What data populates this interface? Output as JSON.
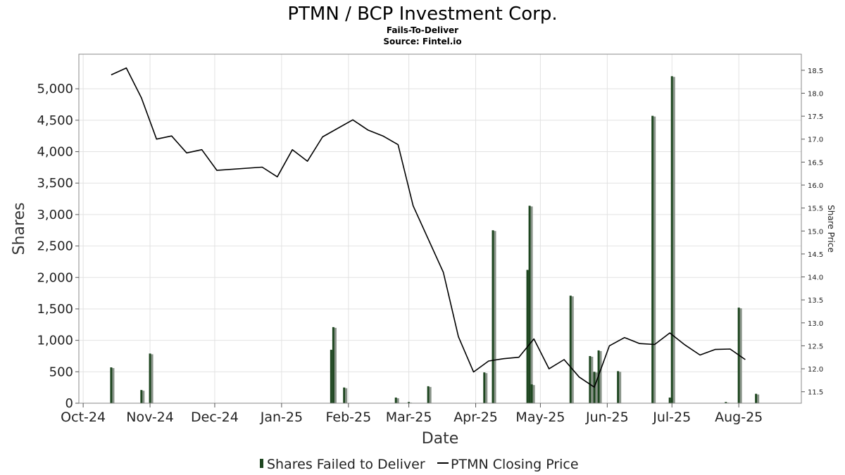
{
  "chart_data": {
    "type": "bar",
    "title": "PTMN / BCP Investment Corp.",
    "subtitle": "Fails-To-Deliver",
    "source": "Source: Fintel.io",
    "xlabel": "Date",
    "ylabel": "Shares",
    "y2label": "Share Price",
    "ylim": [
      0,
      5550
    ],
    "y2lim": [
      11.25,
      18.85
    ],
    "yticks": [
      0,
      500,
      1000,
      1500,
      2000,
      2500,
      3000,
      3500,
      4000,
      4500,
      5000
    ],
    "ytick_labels": [
      "0",
      "500",
      "1,000",
      "1,500",
      "2,000",
      "2,500",
      "3,000",
      "3,500",
      "4,000",
      "4,500",
      "5,000"
    ],
    "y2ticks": [
      11.5,
      12.0,
      12.5,
      13.0,
      13.5,
      14.0,
      14.5,
      15.0,
      15.5,
      16.0,
      16.5,
      17.0,
      17.5,
      18.0,
      18.5
    ],
    "y2tick_labels": [
      "11.5",
      "12.0",
      "12.5",
      "13.0",
      "13.5",
      "14.0",
      "14.5",
      "15.0",
      "15.5",
      "16.0",
      "16.5",
      "17.0",
      "17.5",
      "18.0",
      "18.5"
    ],
    "xlim": [
      "2024-09-29",
      "2025-08-30"
    ],
    "xticks": [
      "2024-10-01",
      "2024-11-01",
      "2024-12-01",
      "2025-01-01",
      "2025-02-01",
      "2025-03-01",
      "2025-04-01",
      "2025-05-01",
      "2025-06-01",
      "2025-07-01",
      "2025-08-01"
    ],
    "xtick_labels": [
      "Oct-24",
      "Nov-24",
      "Dec-24",
      "Jan-25",
      "Feb-25",
      "Mar-25",
      "Apr-25",
      "May-25",
      "Jun-25",
      "Jul-25",
      "Aug-25"
    ],
    "grid": true,
    "legend_position": "bottom-center",
    "series": [
      {
        "name": "Shares Failed to Deliver",
        "kind": "bar",
        "color": "#1e4620",
        "points": [
          {
            "x": "2024-10-14",
            "y": 570
          },
          {
            "x": "2024-10-28",
            "y": 210
          },
          {
            "x": "2024-11-01",
            "y": 790
          },
          {
            "x": "2025-01-24",
            "y": 850
          },
          {
            "x": "2025-01-25",
            "y": 1210
          },
          {
            "x": "2025-01-30",
            "y": 250
          },
          {
            "x": "2025-02-23",
            "y": 90
          },
          {
            "x": "2025-03-01",
            "y": 20
          },
          {
            "x": "2025-03-10",
            "y": 270
          },
          {
            "x": "2025-04-05",
            "y": 490
          },
          {
            "x": "2025-04-09",
            "y": 2750
          },
          {
            "x": "2025-04-25",
            "y": 2120
          },
          {
            "x": "2025-04-26",
            "y": 3140
          },
          {
            "x": "2025-04-27",
            "y": 300
          },
          {
            "x": "2025-05-15",
            "y": 1710
          },
          {
            "x": "2025-05-24",
            "y": 750
          },
          {
            "x": "2025-05-26",
            "y": 500
          },
          {
            "x": "2025-05-28",
            "y": 840
          },
          {
            "x": "2025-06-06",
            "y": 510
          },
          {
            "x": "2025-06-22",
            "y": 4570
          },
          {
            "x": "2025-06-30",
            "y": 90
          },
          {
            "x": "2025-07-01",
            "y": 5200
          },
          {
            "x": "2025-07-26",
            "y": 20
          },
          {
            "x": "2025-08-01",
            "y": 1520
          },
          {
            "x": "2025-08-09",
            "y": 150
          }
        ]
      },
      {
        "name": "PTMN Closing Price",
        "kind": "line",
        "color": "#000000",
        "points": [
          {
            "x": "2024-10-14",
            "y": 18.4
          },
          {
            "x": "2024-10-21",
            "y": 18.55
          },
          {
            "x": "2024-10-28",
            "y": 17.9
          },
          {
            "x": "2024-11-04",
            "y": 17.0
          },
          {
            "x": "2024-11-11",
            "y": 17.07
          },
          {
            "x": "2024-11-18",
            "y": 16.7
          },
          {
            "x": "2024-11-25",
            "y": 16.77
          },
          {
            "x": "2024-12-02",
            "y": 16.32
          },
          {
            "x": "2024-12-23",
            "y": 16.39
          },
          {
            "x": "2024-12-30",
            "y": 16.18
          },
          {
            "x": "2025-01-06",
            "y": 16.77
          },
          {
            "x": "2025-01-13",
            "y": 16.52
          },
          {
            "x": "2025-01-20",
            "y": 17.05
          },
          {
            "x": "2025-02-03",
            "y": 17.42
          },
          {
            "x": "2025-02-10",
            "y": 17.2
          },
          {
            "x": "2025-02-17",
            "y": 17.07
          },
          {
            "x": "2025-02-24",
            "y": 16.88
          },
          {
            "x": "2025-03-03",
            "y": 15.55
          },
          {
            "x": "2025-03-17",
            "y": 14.1
          },
          {
            "x": "2025-03-24",
            "y": 12.7
          },
          {
            "x": "2025-03-31",
            "y": 11.93
          },
          {
            "x": "2025-04-07",
            "y": 12.17
          },
          {
            "x": "2025-04-14",
            "y": 12.22
          },
          {
            "x": "2025-04-21",
            "y": 12.25
          },
          {
            "x": "2025-04-28",
            "y": 12.65
          },
          {
            "x": "2025-05-05",
            "y": 12.0
          },
          {
            "x": "2025-05-12",
            "y": 12.2
          },
          {
            "x": "2025-05-19",
            "y": 11.82
          },
          {
            "x": "2025-05-26",
            "y": 11.6
          },
          {
            "x": "2025-06-02",
            "y": 12.5
          },
          {
            "x": "2025-06-09",
            "y": 12.68
          },
          {
            "x": "2025-06-16",
            "y": 12.55
          },
          {
            "x": "2025-06-23",
            "y": 12.53
          },
          {
            "x": "2025-06-30",
            "y": 12.78
          },
          {
            "x": "2025-07-07",
            "y": 12.52
          },
          {
            "x": "2025-07-14",
            "y": 12.3
          },
          {
            "x": "2025-07-21",
            "y": 12.42
          },
          {
            "x": "2025-07-28",
            "y": 12.43
          },
          {
            "x": "2025-08-04",
            "y": 12.2
          }
        ]
      }
    ]
  }
}
